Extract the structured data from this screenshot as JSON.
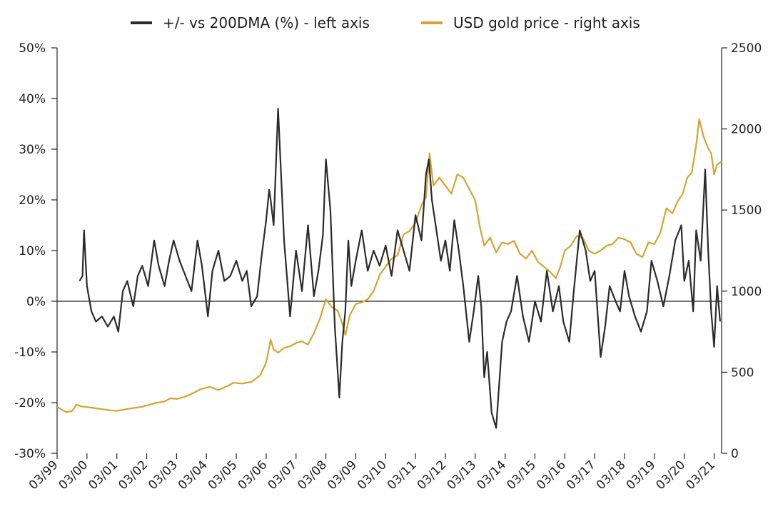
{
  "chart_data": {
    "type": "line",
    "title": "",
    "xlabel": "",
    "ylabel_left": "",
    "ylabel_right": "",
    "x_ticks": [
      "03/99",
      "03/00",
      "03/01",
      "03/02",
      "03/03",
      "03/04",
      "03/05",
      "03/06",
      "03/07",
      "03/08",
      "03/09",
      "03/10",
      "03/11",
      "03/12",
      "03/13",
      "03/14",
      "03/15",
      "03/16",
      "03/17",
      "03/18",
      "03/19",
      "03/20",
      "03/21"
    ],
    "x_range": [
      1999.2,
      2021.45
    ],
    "y_left": {
      "range": [
        -30,
        50
      ],
      "ticks": [
        -30,
        -20,
        -10,
        0,
        10,
        20,
        30,
        40,
        50
      ],
      "tick_labels": [
        "-30%",
        "-20%",
        "-10%",
        "0%",
        "10%",
        "20%",
        "30%",
        "40%",
        "50%"
      ]
    },
    "y_right": {
      "range": [
        0,
        2500
      ],
      "ticks": [
        0,
        500,
        1000,
        1500,
        2000,
        2500
      ],
      "tick_labels": [
        "0",
        "500",
        "1000",
        "1500",
        "2000",
        "2500"
      ]
    },
    "legend_position": "top-center",
    "series": [
      {
        "name": "+/- vs 200DMA (%) - left axis",
        "axis": "left",
        "color": "#2b2b2b",
        "x": [
          1999.95,
          2000.05,
          2000.1,
          2000.2,
          2000.35,
          2000.5,
          2000.7,
          2000.9,
          2001.1,
          2001.25,
          2001.4,
          2001.55,
          2001.75,
          2001.9,
          2002.05,
          2002.25,
          2002.45,
          2002.6,
          2002.8,
          2002.95,
          2003.1,
          2003.3,
          2003.5,
          2003.7,
          2003.9,
          2004.05,
          2004.25,
          2004.4,
          2004.6,
          2004.8,
          2005.0,
          2005.2,
          2005.4,
          2005.55,
          2005.7,
          2005.9,
          2006.05,
          2006.2,
          2006.3,
          2006.35,
          2006.45,
          2006.6,
          2006.8,
          2007.0,
          2007.2,
          2007.4,
          2007.6,
          2007.8,
          2007.95,
          2008.1,
          2008.2,
          2008.35,
          2008.5,
          2008.65,
          2008.75,
          2008.85,
          2008.95,
          2009.05,
          2009.2,
          2009.4,
          2009.6,
          2009.8,
          2010.0,
          2010.2,
          2010.4,
          2010.6,
          2010.8,
          2011.0,
          2011.2,
          2011.4,
          2011.55,
          2011.65,
          2011.75,
          2011.9,
          2012.05,
          2012.2,
          2012.35,
          2012.5,
          2012.65,
          2012.8,
          2013.0,
          2013.15,
          2013.3,
          2013.4,
          2013.5,
          2013.6,
          2013.75,
          2013.9,
          2014.1,
          2014.25,
          2014.4,
          2014.6,
          2014.8,
          2015.0,
          2015.2,
          2015.4,
          2015.6,
          2015.8,
          2016.0,
          2016.15,
          2016.35,
          2016.5,
          2016.7,
          2016.9,
          2017.05,
          2017.2,
          2017.4,
          2017.55,
          2017.7,
          2017.9,
          2018.05,
          2018.2,
          2018.35,
          2018.55,
          2018.75,
          2018.95,
          2019.1,
          2019.3,
          2019.5,
          2019.7,
          2019.9,
          2020.1,
          2020.2,
          2020.35,
          2020.5,
          2020.6,
          2020.75,
          2020.9,
          2021.0,
          2021.1,
          2021.2,
          2021.3,
          2021.4
        ],
        "values": [
          4,
          5,
          14,
          3,
          -2,
          -4,
          -3,
          -5,
          -3,
          -6,
          2,
          4,
          -1,
          5,
          7,
          3,
          12,
          7,
          3,
          8,
          12,
          8,
          5,
          2,
          12,
          7,
          -3,
          6,
          10,
          4,
          5,
          8,
          4,
          6,
          -1,
          1,
          9,
          16,
          22,
          20,
          15,
          38,
          12,
          -3,
          10,
          2,
          15,
          1,
          6,
          13,
          28,
          18,
          -5,
          -19,
          -8,
          -2,
          12,
          3,
          8,
          14,
          6,
          10,
          7,
          11,
          5,
          14,
          10,
          6,
          17,
          12,
          25,
          28,
          20,
          14,
          8,
          12,
          6,
          16,
          10,
          3,
          -8,
          -2,
          5,
          -1,
          -15,
          -10,
          -22,
          -25,
          -8,
          -4,
          -2,
          5,
          -3,
          -8,
          0,
          -4,
          6,
          -2,
          3,
          -4,
          -8,
          2,
          14,
          10,
          4,
          6,
          -11,
          -5,
          3,
          0,
          -2,
          6,
          1,
          -3,
          -6,
          -2,
          8,
          4,
          -1,
          5,
          12,
          15,
          4,
          8,
          -2,
          14,
          8,
          26,
          10,
          -2,
          -9,
          3,
          -4
        ]
      },
      {
        "name": "USD gold price - right axis",
        "axis": "right",
        "color": "#d4a42e",
        "x": [
          1999.2,
          1999.35,
          1999.5,
          1999.7,
          1999.85,
          2000.0,
          2000.2,
          2000.4,
          2000.6,
          2000.8,
          2001.0,
          2001.2,
          2001.4,
          2001.6,
          2001.8,
          2002.0,
          2002.2,
          2002.5,
          2002.8,
          2003.0,
          2003.2,
          2003.5,
          2003.8,
          2004.0,
          2004.3,
          2004.6,
          2004.9,
          2005.1,
          2005.4,
          2005.7,
          2006.0,
          2006.2,
          2006.35,
          2006.45,
          2006.6,
          2006.8,
          2007.0,
          2007.2,
          2007.4,
          2007.6,
          2007.8,
          2008.0,
          2008.2,
          2008.4,
          2008.6,
          2008.75,
          2008.85,
          2009.0,
          2009.2,
          2009.4,
          2009.6,
          2009.8,
          2010.0,
          2010.2,
          2010.4,
          2010.6,
          2010.8,
          2011.0,
          2011.2,
          2011.4,
          2011.55,
          2011.67,
          2011.8,
          2012.0,
          2012.2,
          2012.4,
          2012.6,
          2012.8,
          2013.0,
          2013.2,
          2013.35,
          2013.5,
          2013.7,
          2013.9,
          2014.1,
          2014.3,
          2014.5,
          2014.7,
          2014.9,
          2015.1,
          2015.3,
          2015.5,
          2015.7,
          2015.9,
          2016.05,
          2016.2,
          2016.4,
          2016.6,
          2016.8,
          2017.0,
          2017.2,
          2017.4,
          2017.6,
          2017.8,
          2018.0,
          2018.2,
          2018.4,
          2018.6,
          2018.8,
          2019.0,
          2019.2,
          2019.4,
          2019.6,
          2019.8,
          2020.0,
          2020.15,
          2020.3,
          2020.45,
          2020.6,
          2020.7,
          2020.85,
          2021.0,
          2021.1,
          2021.2,
          2021.3,
          2021.45
        ],
        "values": [
          285,
          270,
          255,
          260,
          300,
          290,
          285,
          280,
          275,
          270,
          265,
          262,
          268,
          275,
          280,
          285,
          295,
          310,
          320,
          340,
          335,
          350,
          375,
          395,
          410,
          390,
          415,
          435,
          430,
          440,
          480,
          560,
          700,
          640,
          620,
          650,
          660,
          680,
          690,
          670,
          740,
          830,
          950,
          900,
          880,
          800,
          730,
          850,
          920,
          930,
          950,
          1000,
          1100,
          1150,
          1200,
          1220,
          1350,
          1370,
          1420,
          1530,
          1580,
          1850,
          1650,
          1700,
          1650,
          1600,
          1720,
          1700,
          1630,
          1560,
          1400,
          1280,
          1330,
          1240,
          1300,
          1290,
          1310,
          1230,
          1200,
          1250,
          1180,
          1150,
          1120,
          1080,
          1150,
          1250,
          1280,
          1340,
          1330,
          1250,
          1230,
          1250,
          1280,
          1290,
          1330,
          1320,
          1300,
          1230,
          1210,
          1300,
          1290,
          1360,
          1510,
          1480,
          1560,
          1600,
          1700,
          1730,
          1900,
          2060,
          1950,
          1880,
          1850,
          1720,
          1780,
          1800
        ]
      }
    ]
  }
}
